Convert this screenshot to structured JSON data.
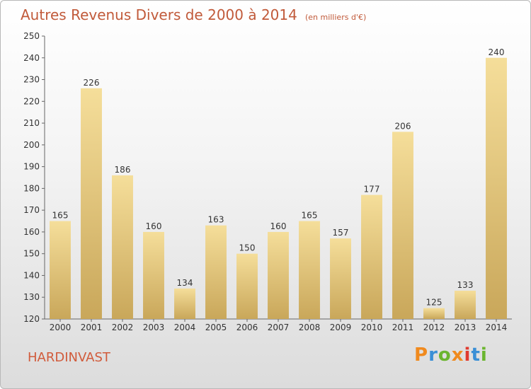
{
  "chart_data": {
    "type": "bar",
    "title": "Autres Revenus Divers de 2000 à 2014",
    "unit_note": "(en milliers d'€)",
    "categories": [
      "2000",
      "2001",
      "2002",
      "2003",
      "2004",
      "2005",
      "2006",
      "2007",
      "2008",
      "2009",
      "2010",
      "2011",
      "2012",
      "2013",
      "2014"
    ],
    "values": [
      165,
      226,
      186,
      160,
      134,
      163,
      150,
      160,
      165,
      157,
      177,
      206,
      125,
      133,
      240
    ],
    "ylim": [
      120,
      250
    ],
    "yticks": [
      120,
      130,
      140,
      150,
      160,
      170,
      180,
      190,
      200,
      210,
      220,
      230,
      240,
      250
    ],
    "grid": false,
    "bar_color_light": "#f5de9a",
    "bar_color_dark": "#c9a75a"
  },
  "location": "HARDINVAST",
  "logo": {
    "letters": [
      "P",
      "r",
      "o",
      "x",
      "i",
      "t",
      "i"
    ],
    "colors": [
      "#f08a1e",
      "#3a8fd6",
      "#6bb52f",
      "#f08a1e",
      "#e03a2f",
      "#3a8fd6",
      "#6bb52f"
    ]
  }
}
